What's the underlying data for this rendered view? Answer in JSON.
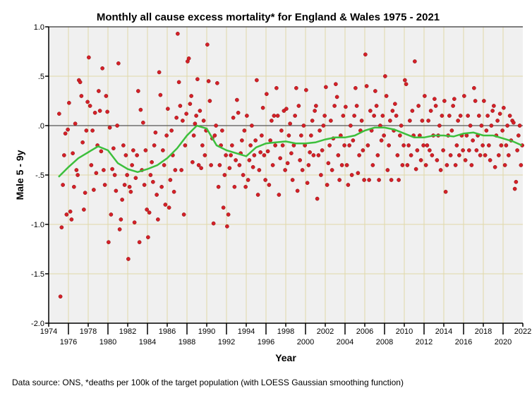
{
  "chart_data": {
    "type": "scatter",
    "title": "Monthly all cause excess mortality* for England & Wales 1975 - 2021",
    "xlabel": "Year",
    "ylabel": "Male 5 - 9y",
    "xlim": [
      1974,
      2022
    ],
    "ylim": [
      -2.0,
      1.0
    ],
    "xticks": [
      "1974",
      "1976",
      "1978",
      "1980",
      "1982",
      "1984",
      "1986",
      "1988",
      "1990",
      "1992",
      "1994",
      "1996",
      "1998",
      "2000",
      "2002",
      "2004",
      "2006",
      "2008",
      "2010",
      "2012",
      "2014",
      "2016",
      "2018",
      "2020",
      "2022"
    ],
    "yticks": [
      "1.0",
      ".5",
      ".0",
      "-.5",
      "-1.0",
      "-1.5",
      "-2.0"
    ],
    "grid": true,
    "reference_line": 0,
    "colors": {
      "points": "#d42028",
      "loess": "#3cbf3c",
      "grid": "#e0d8a8",
      "background": "#f0f0f0"
    },
    "footnote": "Data source: ONS, *deaths per 100k of the target population (with LOESS Gaussian smoothing function)",
    "loess": {
      "x": [
        1975,
        1976,
        1977,
        1978,
        1979,
        1980,
        1981,
        1982,
        1983,
        1984,
        1985,
        1986,
        1987,
        1988,
        1989,
        1990,
        1991,
        1992,
        1993,
        1994,
        1995,
        1996,
        1997,
        1998,
        1999,
        2000,
        2001,
        2002,
        2003,
        2004,
        2005,
        2006,
        2007,
        2008,
        2009,
        2010,
        2011,
        2012,
        2013,
        2014,
        2015,
        2016,
        2017,
        2018,
        2019,
        2020,
        2021,
        2021.9
      ],
      "y": [
        -0.52,
        -0.42,
        -0.33,
        -0.27,
        -0.21,
        -0.25,
        -0.38,
        -0.44,
        -0.47,
        -0.44,
        -0.4,
        -0.33,
        -0.23,
        -0.1,
        0.0,
        -0.03,
        -0.2,
        -0.25,
        -0.28,
        -0.31,
        -0.22,
        -0.18,
        -0.17,
        -0.16,
        -0.18,
        -0.18,
        -0.17,
        -0.14,
        -0.12,
        -0.12,
        -0.1,
        -0.05,
        -0.02,
        -0.02,
        -0.04,
        -0.08,
        -0.12,
        -0.12,
        -0.1,
        -0.1,
        -0.11,
        -0.08,
        -0.07,
        -0.1,
        -0.1,
        -0.13,
        -0.16,
        -0.2
      ]
    },
    "points_start_year": 1975,
    "points_by_year": [
      [
        0.12,
        -1.73,
        -1.03,
        -0.6,
        -0.3,
        -0.08,
        -0.9,
        -0.04
      ],
      [
        0.23,
        -0.87,
        -0.95,
        -0.28,
        -0.62,
        0.02,
        -0.45,
        -0.5
      ],
      [
        0.46,
        0.44,
        0.3,
        -0.17,
        -0.85,
        -0.68,
        -0.05,
        0.24
      ],
      [
        0.69,
        0.2,
        -0.4,
        -0.05,
        -0.65,
        0.13,
        -0.48,
        -0.2
      ],
      [
        0.35,
        0.15,
        -0.26,
        0.58,
        -0.45,
        -0.6,
        0.3,
        0.14
      ],
      [
        -1.18,
        -0.02,
        -0.9,
        -0.44,
        -0.23,
        -0.5,
        -0.66,
        0.0
      ],
      [
        0.63,
        -1.05,
        -0.95,
        -0.75,
        -0.2,
        -0.6,
        -0.3,
        -0.5
      ],
      [
        -1.35,
        -0.62,
        -0.67,
        -0.4,
        -0.25,
        -0.98,
        -0.53,
        -0.3
      ],
      [
        0.35,
        -1.18,
        0.16,
        -0.45,
        0.03,
        -0.6,
        -0.25,
        -0.85
      ],
      [
        -1.13,
        -0.88,
        -0.5,
        -0.37,
        -0.57,
        -0.2,
        -0.07,
        -0.7
      ],
      [
        -0.95,
        0.54,
        0.31,
        -0.62,
        -0.25,
        -0.4,
        -0.8,
        -0.1
      ],
      [
        0.17,
        -0.83,
        -0.55,
        -0.05,
        -0.3,
        -0.67,
        -0.45,
        0.08
      ],
      [
        0.93,
        0.44,
        0.2,
        -0.45,
        0.05,
        -0.9,
        -0.2,
        0.12
      ],
      [
        0.65,
        0.68,
        0.22,
        0.3,
        -0.37,
        -0.1,
        0.02,
        0.1
      ],
      [
        0.47,
        -0.4,
        0.15,
        -0.43,
        -0.2,
        0.05,
        -0.3,
        -0.05
      ],
      [
        0.82,
        0.45,
        0.25,
        -0.4,
        -0.13,
        -0.99,
        -0.1,
        0.0
      ],
      [
        0.43,
        -0.62,
        -0.4,
        -0.2,
        -0.05,
        -0.83,
        -0.5,
        -0.3
      ],
      [
        -1.02,
        -0.9,
        -0.43,
        -0.3,
        -0.2,
        0.08,
        -0.62,
        -0.35
      ],
      [
        0.26,
        0.13,
        -0.4,
        -0.28,
        -0.15,
        -0.5,
        -0.05,
        -0.62
      ],
      [
        0.1,
        -0.55,
        -0.35,
        -0.2,
        0.0,
        -0.42,
        -0.3,
        -0.15
      ],
      [
        0.46,
        -0.7,
        -0.45,
        -0.27,
        -0.1,
        0.18,
        -0.3,
        -0.55
      ],
      [
        0.32,
        -0.26,
        -0.6,
        -0.15,
        0.05,
        -0.4,
        0.1,
        -0.2
      ],
      [
        0.38,
        0.1,
        -0.7,
        -0.33,
        -0.05,
        -0.2,
        0.15,
        -0.45
      ],
      [
        0.17,
        -0.38,
        -0.1,
        0.02,
        -0.28,
        -0.55,
        -0.2,
        0.1
      ],
      [
        0.38,
        -0.66,
        0.2,
        -0.35,
        -0.1,
        -0.45,
        0.0,
        -0.2
      ],
      [
        0.36,
        -0.58,
        -0.4,
        -0.27,
        -0.1,
        0.05,
        -0.3,
        0.15
      ],
      [
        0.2,
        -0.74,
        -0.3,
        -0.05,
        -0.5,
        -0.25,
        0.0,
        0.1
      ],
      [
        0.39,
        -0.6,
        -0.38,
        -0.2,
        0.05,
        -0.45,
        -0.13,
        0.2
      ],
      [
        0.42,
        0.29,
        -0.3,
        -0.55,
        -0.1,
        -0.4,
        0.1,
        -0.2
      ],
      [
        0.19,
        -0.4,
        -0.6,
        -0.2,
        0.0,
        -0.5,
        -0.15,
        0.1
      ],
      [
        0.38,
        0.2,
        -0.48,
        -0.3,
        -0.05,
        0.05,
        -0.25,
        -0.55
      ],
      [
        0.72,
        0.4,
        -0.2,
        -0.55,
        0.15,
        -0.05,
        -0.4,
        0.1
      ],
      [
        0.35,
        0.2,
        -0.3,
        -0.55,
        0.0,
        -0.15,
        0.1,
        -0.1
      ],
      [
        0.5,
        0.3,
        -0.45,
        -0.2,
        0.05,
        -0.55,
        0.15,
        -0.05
      ],
      [
        0.22,
        0.1,
        -0.3,
        -0.55,
        -0.1,
        0.0,
        -0.4,
        -0.2
      ],
      [
        0.46,
        0.42,
        -0.4,
        -0.2,
        0.05,
        -0.3,
        0.15,
        -0.1
      ],
      [
        0.65,
        -0.44,
        -0.25,
        0.2,
        -0.1,
        -0.35,
        0.05,
        -0.2
      ],
      [
        0.3,
        -0.4,
        -0.2,
        0.05,
        -0.25,
        0.15,
        -0.3,
        -0.1
      ],
      [
        0.27,
        0.2,
        -0.35,
        -0.1,
        0.0,
        -0.45,
        0.1,
        -0.25
      ],
      [
        0.25,
        -0.67,
        -0.4,
        -0.1,
        0.1,
        -0.3,
        -0.05,
        0.2
      ],
      [
        0.27,
        -0.4,
        -0.2,
        0.05,
        -0.3,
        0.1,
        -0.1,
        -0.25
      ],
      [
        0.3,
        -0.35,
        -0.1,
        0.1,
        -0.25,
        0.0,
        -0.4,
        -0.15
      ],
      [
        0.38,
        0.25,
        -0.25,
        -0.1,
        0.1,
        -0.3,
        0.0,
        -0.2
      ],
      [
        0.25,
        -0.3,
        -0.05,
        0.1,
        -0.2,
        -0.35,
        0.0,
        0.15
      ],
      [
        0.2,
        -0.42,
        -0.1,
        0.05,
        -0.3,
        0.12,
        -0.2,
        -0.05
      ],
      [
        0.18,
        -0.4,
        -0.2,
        0.0,
        -0.3,
        0.1,
        -0.15,
        0.05
      ],
      [
        0.03,
        -0.64,
        -0.57,
        -0.25,
        -0.1,
        0.0,
        -0.4,
        -0.2
      ]
    ]
  }
}
